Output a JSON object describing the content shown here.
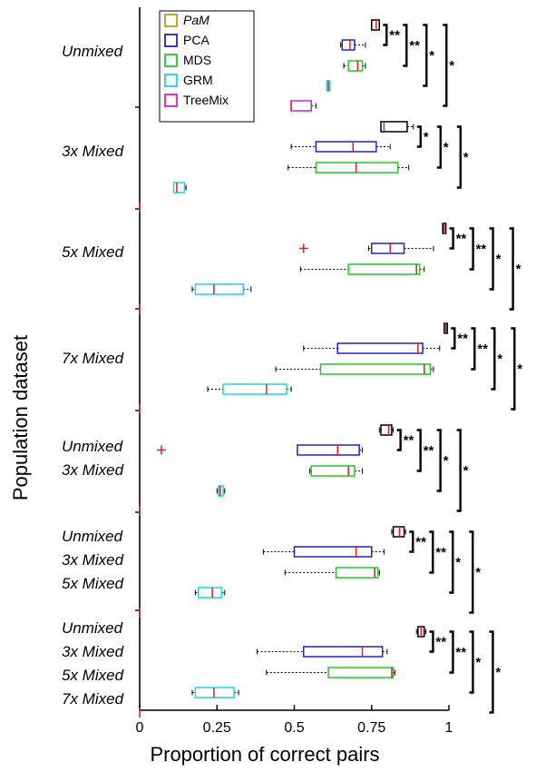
{
  "chart_data": {
    "type": "boxplot",
    "orientation": "horizontal",
    "xlabel": "Proportion of correct pairs",
    "ylabel": "Population dataset",
    "xlim": [
      0,
      1
    ],
    "xticks": [
      "0",
      "0.25",
      "0.5",
      "0.75",
      "1"
    ],
    "legend": {
      "placement": "top-left",
      "entries": [
        {
          "name": "PaM",
          "color": "#c8961e",
          "italic": true
        },
        {
          "name": "PCA",
          "color": "#2222c8",
          "italic": false
        },
        {
          "name": "MDS",
          "color": "#22c822",
          "italic": false
        },
        {
          "name": "GRM",
          "color": "#22d2e6",
          "italic": false
        },
        {
          "name": "TreeMix",
          "color": "#d61ed2",
          "italic": false
        }
      ]
    },
    "box_colors": [
      "#000000",
      "#2222c8",
      "#22c822",
      "#22d2e6",
      "#d61ed2"
    ],
    "median_color": "#e02020",
    "groups": [
      {
        "labels": [
          "Unmixed"
        ],
        "boxes": [
          {
            "method": "PaM",
            "whislo": 0.75,
            "q1": 0.75,
            "med": 0.765,
            "q3": 0.775,
            "whishi": 0.775,
            "fliers": []
          },
          {
            "method": "PCA",
            "whislo": 0.65,
            "q1": 0.655,
            "med": 0.68,
            "q3": 0.695,
            "whishi": 0.73,
            "fliers": []
          },
          {
            "method": "MDS",
            "whislo": 0.66,
            "q1": 0.675,
            "med": 0.705,
            "q3": 0.72,
            "whishi": 0.73,
            "fliers": []
          },
          {
            "method": "GRM",
            "whislo": 0.605,
            "q1": 0.605,
            "med": 0.61,
            "q3": 0.615,
            "whishi": 0.615,
            "fliers": []
          },
          {
            "method": "TreeMix",
            "whislo": 0.49,
            "q1": 0.49,
            "med": 0.49,
            "q3": 0.555,
            "whishi": 0.57,
            "fliers": []
          }
        ],
        "significance": [
          "**",
          "**",
          "*",
          "*"
        ]
      },
      {
        "labels": [
          "3x Mixed"
        ],
        "boxes": [
          {
            "method": "PaM",
            "whislo": 0.78,
            "q1": 0.78,
            "med": 0.79,
            "q3": 0.865,
            "whishi": 0.885,
            "fliers": []
          },
          {
            "method": "PCA",
            "whislo": 0.49,
            "q1": 0.57,
            "med": 0.69,
            "q3": 0.765,
            "whishi": 0.81,
            "fliers": []
          },
          {
            "method": "MDS",
            "whislo": 0.48,
            "q1": 0.57,
            "med": 0.7,
            "q3": 0.835,
            "whishi": 0.87,
            "fliers": []
          },
          {
            "method": "GRM",
            "whislo": 0.11,
            "q1": 0.11,
            "med": 0.12,
            "q3": 0.145,
            "whishi": 0.15,
            "fliers": []
          },
          {
            "method": "TreeMix",
            "whislo": 0.0,
            "q1": 0.0,
            "med": 0.0,
            "q3": 0.0,
            "whishi": 0.0,
            "fliers": []
          }
        ],
        "significance": [
          "*",
          "*",
          "*"
        ]
      },
      {
        "labels": [
          "5x Mixed"
        ],
        "boxes": [
          {
            "method": "PaM",
            "whislo": 0.98,
            "q1": 0.98,
            "med": 0.985,
            "q3": 0.99,
            "whishi": 0.99,
            "fliers": []
          },
          {
            "method": "PCA",
            "whislo": 0.74,
            "q1": 0.75,
            "med": 0.81,
            "q3": 0.855,
            "whishi": 0.95,
            "fliers": [
              0.53
            ]
          },
          {
            "method": "MDS",
            "whislo": 0.52,
            "q1": 0.675,
            "med": 0.895,
            "q3": 0.905,
            "whishi": 0.92,
            "fliers": []
          },
          {
            "method": "GRM",
            "whislo": 0.17,
            "q1": 0.18,
            "med": 0.24,
            "q3": 0.335,
            "whishi": 0.36,
            "fliers": []
          },
          {
            "method": "TreeMix",
            "whislo": 0.0,
            "q1": 0.0,
            "med": 0.0,
            "q3": 0.0,
            "whishi": 0.0,
            "fliers": []
          }
        ],
        "significance": [
          "**",
          "**",
          "*",
          "*"
        ]
      },
      {
        "labels": [
          "7x Mixed"
        ],
        "boxes": [
          {
            "method": "PaM",
            "whislo": 0.985,
            "q1": 0.985,
            "med": 0.99,
            "q3": 0.995,
            "whishi": 0.995,
            "fliers": []
          },
          {
            "method": "PCA",
            "whislo": 0.53,
            "q1": 0.64,
            "med": 0.9,
            "q3": 0.915,
            "whishi": 0.97,
            "fliers": []
          },
          {
            "method": "MDS",
            "whislo": 0.44,
            "q1": 0.585,
            "med": 0.92,
            "q3": 0.94,
            "whishi": 0.95,
            "fliers": []
          },
          {
            "method": "GRM",
            "whislo": 0.22,
            "q1": 0.27,
            "med": 0.41,
            "q3": 0.475,
            "whishi": 0.49,
            "fliers": []
          },
          {
            "method": "TreeMix",
            "whislo": 0.0,
            "q1": 0.0,
            "med": 0.0,
            "q3": 0.0,
            "whishi": 0.0,
            "fliers": []
          }
        ],
        "significance": [
          "**",
          "**",
          "*",
          "*"
        ]
      },
      {
        "labels": [
          "Unmixed",
          "3x Mixed"
        ],
        "boxes": [
          {
            "method": "PaM",
            "whislo": 0.775,
            "q1": 0.78,
            "med": 0.805,
            "q3": 0.815,
            "whishi": 0.82,
            "fliers": []
          },
          {
            "method": "PCA",
            "whislo": 0.51,
            "q1": 0.51,
            "med": 0.64,
            "q3": 0.71,
            "whishi": 0.72,
            "fliers": [
              0.07
            ]
          },
          {
            "method": "MDS",
            "whislo": 0.55,
            "q1": 0.555,
            "med": 0.675,
            "q3": 0.695,
            "whishi": 0.72,
            "fliers": []
          },
          {
            "method": "GRM",
            "whislo": 0.25,
            "q1": 0.255,
            "med": 0.26,
            "q3": 0.27,
            "whishi": 0.275,
            "fliers": []
          },
          {
            "method": "TreeMix",
            "whislo": 0.0,
            "q1": 0.0,
            "med": 0.0,
            "q3": 0.0,
            "whishi": 0.0,
            "fliers": []
          }
        ],
        "significance": [
          "**",
          "**",
          "*",
          "*"
        ]
      },
      {
        "labels": [
          "Unmixed",
          "3x Mixed",
          "5x Mixed"
        ],
        "boxes": [
          {
            "method": "PaM",
            "whislo": 0.815,
            "q1": 0.82,
            "med": 0.84,
            "q3": 0.855,
            "whishi": 0.86,
            "fliers": []
          },
          {
            "method": "PCA",
            "whislo": 0.4,
            "q1": 0.5,
            "med": 0.7,
            "q3": 0.75,
            "whishi": 0.79,
            "fliers": []
          },
          {
            "method": "MDS",
            "whislo": 0.47,
            "q1": 0.635,
            "med": 0.76,
            "q3": 0.77,
            "whishi": 0.775,
            "fliers": []
          },
          {
            "method": "GRM",
            "whislo": 0.18,
            "q1": 0.19,
            "med": 0.235,
            "q3": 0.265,
            "whishi": 0.275,
            "fliers": []
          },
          {
            "method": "TreeMix",
            "whislo": 0.0,
            "q1": 0.0,
            "med": 0.0,
            "q3": 0.0,
            "whishi": 0.0,
            "fliers": []
          }
        ],
        "significance": [
          "**",
          "**",
          "*",
          "*"
        ]
      },
      {
        "labels": [
          "Unmixed",
          "3x Mixed",
          "5x Mixed",
          "7x Mixed"
        ],
        "boxes": [
          {
            "method": "PaM",
            "whislo": 0.895,
            "q1": 0.9,
            "med": 0.91,
            "q3": 0.92,
            "whishi": 0.925,
            "fliers": []
          },
          {
            "method": "PCA",
            "whislo": 0.38,
            "q1": 0.53,
            "med": 0.72,
            "q3": 0.785,
            "whishi": 0.8,
            "fliers": []
          },
          {
            "method": "MDS",
            "whislo": 0.41,
            "q1": 0.61,
            "med": 0.815,
            "q3": 0.82,
            "whishi": 0.825,
            "fliers": []
          },
          {
            "method": "GRM",
            "whislo": 0.17,
            "q1": 0.18,
            "med": 0.24,
            "q3": 0.305,
            "whishi": 0.32,
            "fliers": []
          },
          {
            "method": "TreeMix",
            "whislo": 0.0,
            "q1": 0.0,
            "med": 0.0,
            "q3": 0.0,
            "whishi": 0.0,
            "fliers": []
          }
        ],
        "significance": [
          "**",
          "**",
          "*",
          "*"
        ]
      }
    ]
  }
}
